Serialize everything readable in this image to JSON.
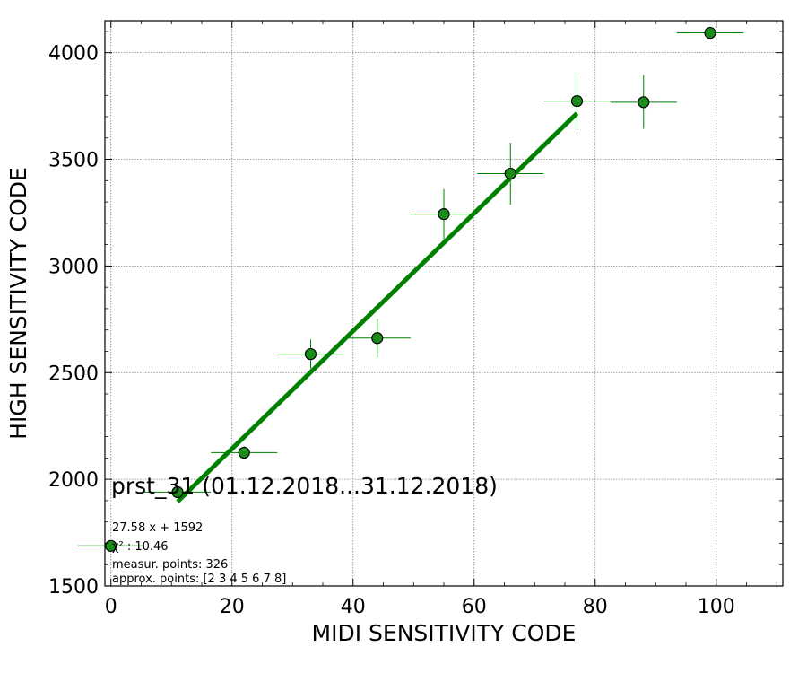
{
  "chart_data": {
    "type": "scatter",
    "title": "prst_31 (01.12.2018...31.12.2018)",
    "xlabel": "MIDI SENSITIVITY CODE",
    "ylabel": "HIGH SENSITIVITY CODE",
    "xlim": [
      -1,
      111
    ],
    "ylim": [
      1500,
      4150
    ],
    "xticks": [
      0,
      20,
      40,
      60,
      80,
      100
    ],
    "yticks": [
      1500,
      2000,
      2500,
      3000,
      3500,
      4000
    ],
    "grid": true,
    "series": [
      {
        "kind": "errorbar-points",
        "color": "#008000",
        "marker_fill": "#1a8c1a",
        "points": [
          {
            "x": 0,
            "y": 1688,
            "xerr": 5.5,
            "yerr": 0
          },
          {
            "x": 11,
            "y": 1940,
            "xerr": 5.5,
            "yerr": 0
          },
          {
            "x": 22,
            "y": 2125,
            "xerr": 5.5,
            "yerr": 30
          },
          {
            "x": 33,
            "y": 2587,
            "xerr": 5.5,
            "yerr": 68
          },
          {
            "x": 44,
            "y": 2662,
            "xerr": 5.5,
            "yerr": 90
          },
          {
            "x": 55,
            "y": 3243,
            "xerr": 5.5,
            "yerr": 118
          },
          {
            "x": 66,
            "y": 3433,
            "xerr": 5.5,
            "yerr": 145
          },
          {
            "x": 77,
            "y": 3773,
            "xerr": 5.5,
            "yerr": 135
          },
          {
            "x": 88,
            "y": 3768,
            "xerr": 5.5,
            "yerr": 125
          },
          {
            "x": 99,
            "y": 4093,
            "xerr": 5.5,
            "yerr": 0
          }
        ]
      },
      {
        "kind": "fit-line",
        "color": "#008000",
        "slope": 27.58,
        "intercept": 1592,
        "x_range": [
          11,
          77
        ]
      }
    ],
    "annotations": [
      "27.58 x + 1592",
      "χ² : 10.46",
      "measur. points: 326",
      "approx. points: [2 3 4 5 6 7 8]"
    ]
  }
}
